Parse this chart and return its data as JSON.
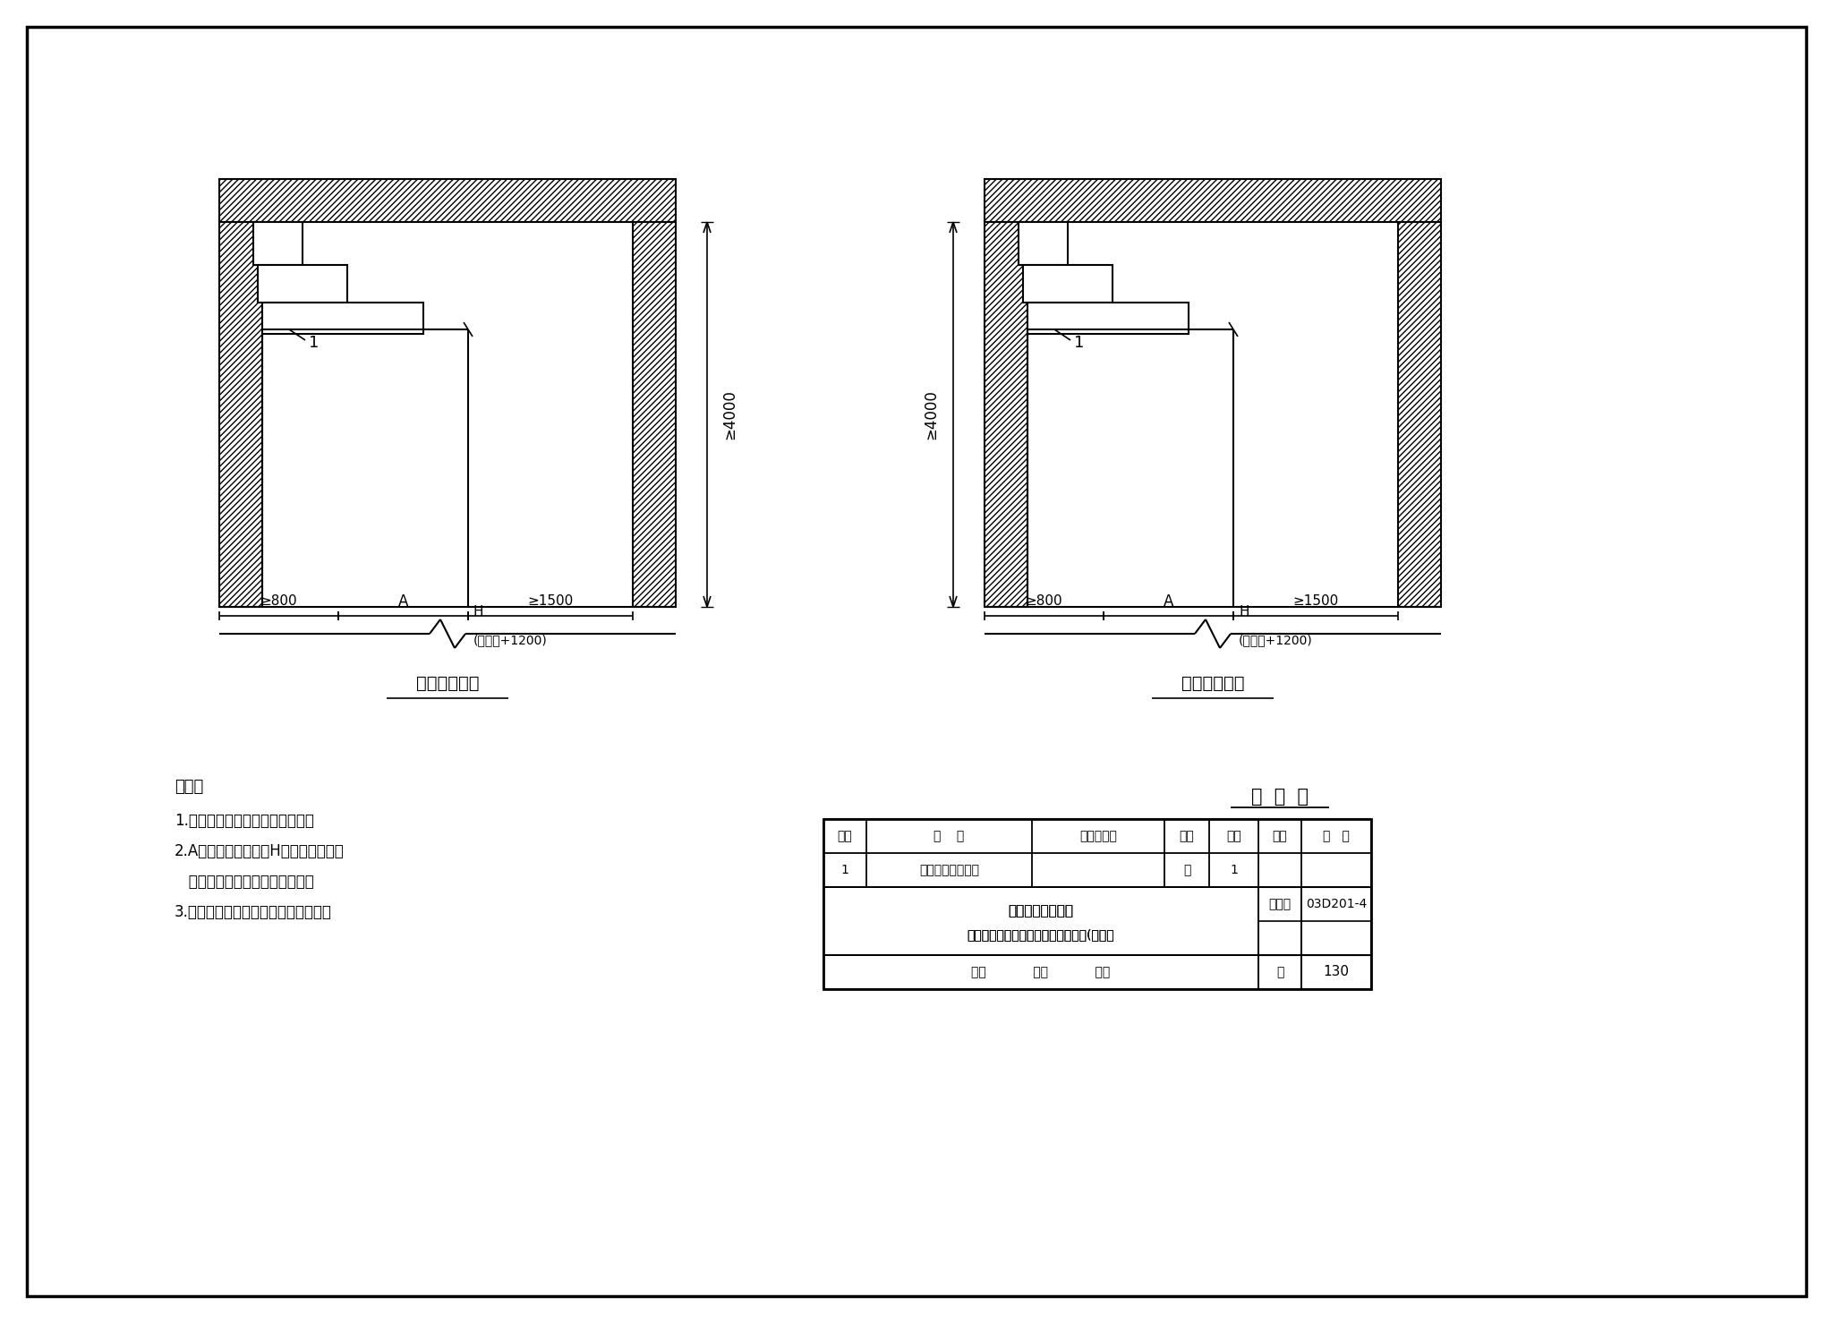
{
  "title1": "后上架空进线",
  "title2": "前上架空进线",
  "note_title": "说明：",
  "notes": [
    "1.母线桥与高压开关柜成套供应。",
    "2.A为开关柜的柜深，H为开关柜高度，",
    "   具体尺寸视所选厂家产品而定。",
    "3.括号内的数值适用于移开式开关柜。"
  ],
  "table_title": "明  细  表",
  "table_headers": [
    "序号",
    "名    称",
    "型号及规格",
    "单位",
    "数量",
    "页次",
    "备   注"
  ],
  "table_row": [
    "1",
    "金属封闭式母线桥",
    "",
    "个",
    "1",
    "",
    ""
  ],
  "bottom_text1": "高压配电室剪面图",
  "bottom_text2": "（架空进出线、金属封闭式母线桥）(示例）",
  "atlas_label": "图集号",
  "atlas_num": "03D201-4",
  "page_label": "页",
  "page_num": "130",
  "review_text": "审核            校对            设计",
  "dim_800": "≥8 00",
  "dim_800_display": "≥800",
  "dim_A": "A",
  "dim_1500": "≥1500",
  "dim_4000": "≥4000",
  "dim_H": "H",
  "dim_1200": "(单车长+1200)"
}
